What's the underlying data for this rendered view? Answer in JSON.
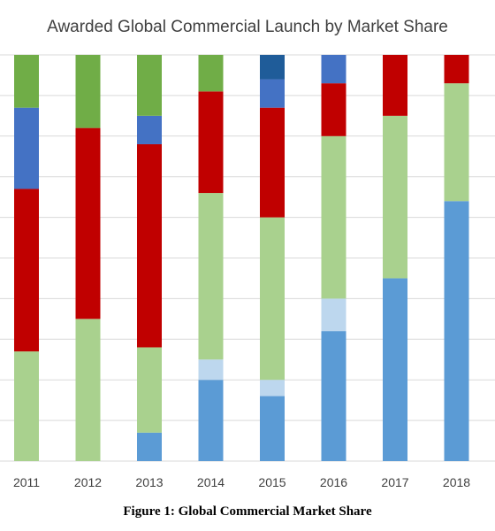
{
  "chart_data": {
    "type": "bar",
    "stacked": true,
    "percent_stacked": true,
    "title": "Awarded Global Commercial Launch by Market Share",
    "xlabel": "",
    "ylabel": "",
    "ylim": [
      0,
      100
    ],
    "grid": true,
    "legend": "none",
    "categories": [
      "2011",
      "2012",
      "2013",
      "2014",
      "2015",
      "2016",
      "2017",
      "2018"
    ],
    "series": [
      {
        "color": "#5b9bd5",
        "values": [
          0,
          0,
          7,
          20,
          16,
          32,
          45,
          64
        ]
      },
      {
        "color": "#bdd7ee",
        "values": [
          0,
          0,
          0,
          5,
          4,
          8,
          0,
          0
        ]
      },
      {
        "color": "#a9d18e",
        "values": [
          27,
          35,
          21,
          41,
          40,
          40,
          40,
          29
        ]
      },
      {
        "color": "#c00000",
        "values": [
          40,
          47,
          50,
          25,
          27,
          13,
          15,
          7
        ]
      },
      {
        "color": "#4472c4",
        "values": [
          20,
          0,
          7,
          0,
          7,
          7,
          0,
          0
        ]
      },
      {
        "color": "#1f5c99",
        "values": [
          0,
          0,
          0,
          0,
          6,
          0,
          0,
          0
        ]
      },
      {
        "color": "#70ad47",
        "values": [
          13,
          18,
          15,
          9,
          0,
          0,
          0,
          0
        ]
      }
    ]
  },
  "caption": "Figure 1: Global Commercial Market Share"
}
